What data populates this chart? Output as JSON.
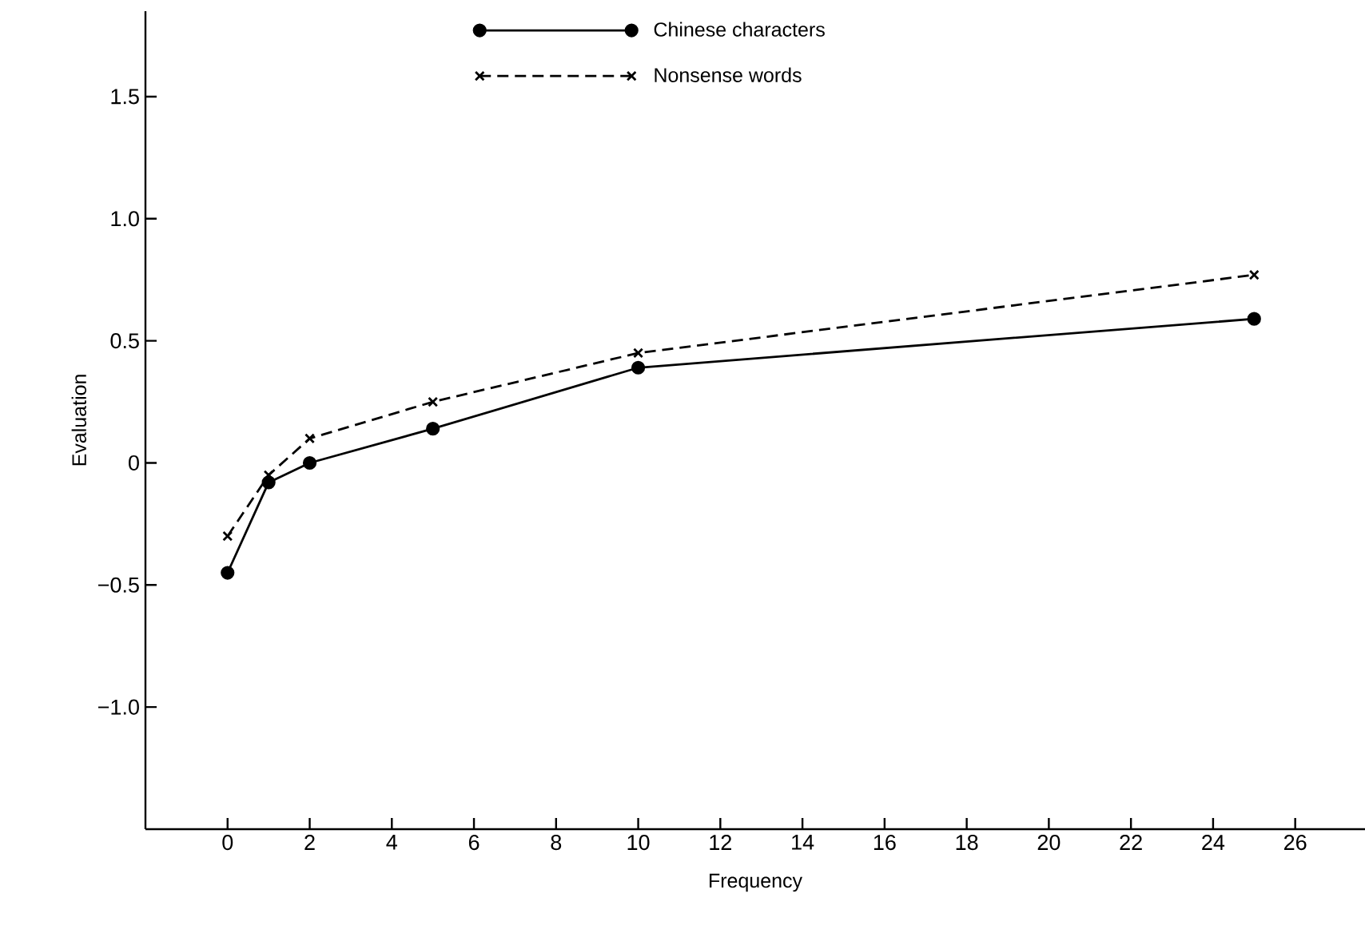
{
  "chart_data": {
    "type": "line",
    "xlabel": "Frequency",
    "ylabel": "Evaluation",
    "xlim": [
      -2,
      27.7
    ],
    "xticks": [
      0,
      2,
      4,
      6,
      8,
      10,
      12,
      14,
      16,
      18,
      20,
      22,
      24,
      26
    ],
    "ylim": [
      -1.5,
      1.85
    ],
    "yticks": [
      {
        "value": -1.0,
        "label": "−1.0"
      },
      {
        "value": -0.5,
        "label": "−0.5"
      },
      0,
      {
        "value": 0.5,
        "label": "0.5"
      },
      {
        "value": 1.0,
        "label": "1.0"
      },
      {
        "value": 1.5,
        "label": "1.5"
      }
    ],
    "grid": false,
    "legend": "top",
    "series": [
      {
        "name": "Chinese characters",
        "color": "#000000",
        "marker": "circle",
        "line_style": "solid",
        "x": [
          0,
          1,
          2,
          5,
          10,
          25
        ],
        "values": [
          -0.45,
          -0.08,
          0,
          0.14,
          0.39,
          0.59
        ]
      },
      {
        "name": "Nonsense words",
        "color": "#000000",
        "marker": "cross",
        "line_style": "dashed",
        "x": [
          0,
          1,
          2,
          5,
          10,
          25
        ],
        "values": [
          -0.3,
          -0.05,
          0.1,
          0.25,
          0.45,
          0.77
        ]
      }
    ]
  }
}
